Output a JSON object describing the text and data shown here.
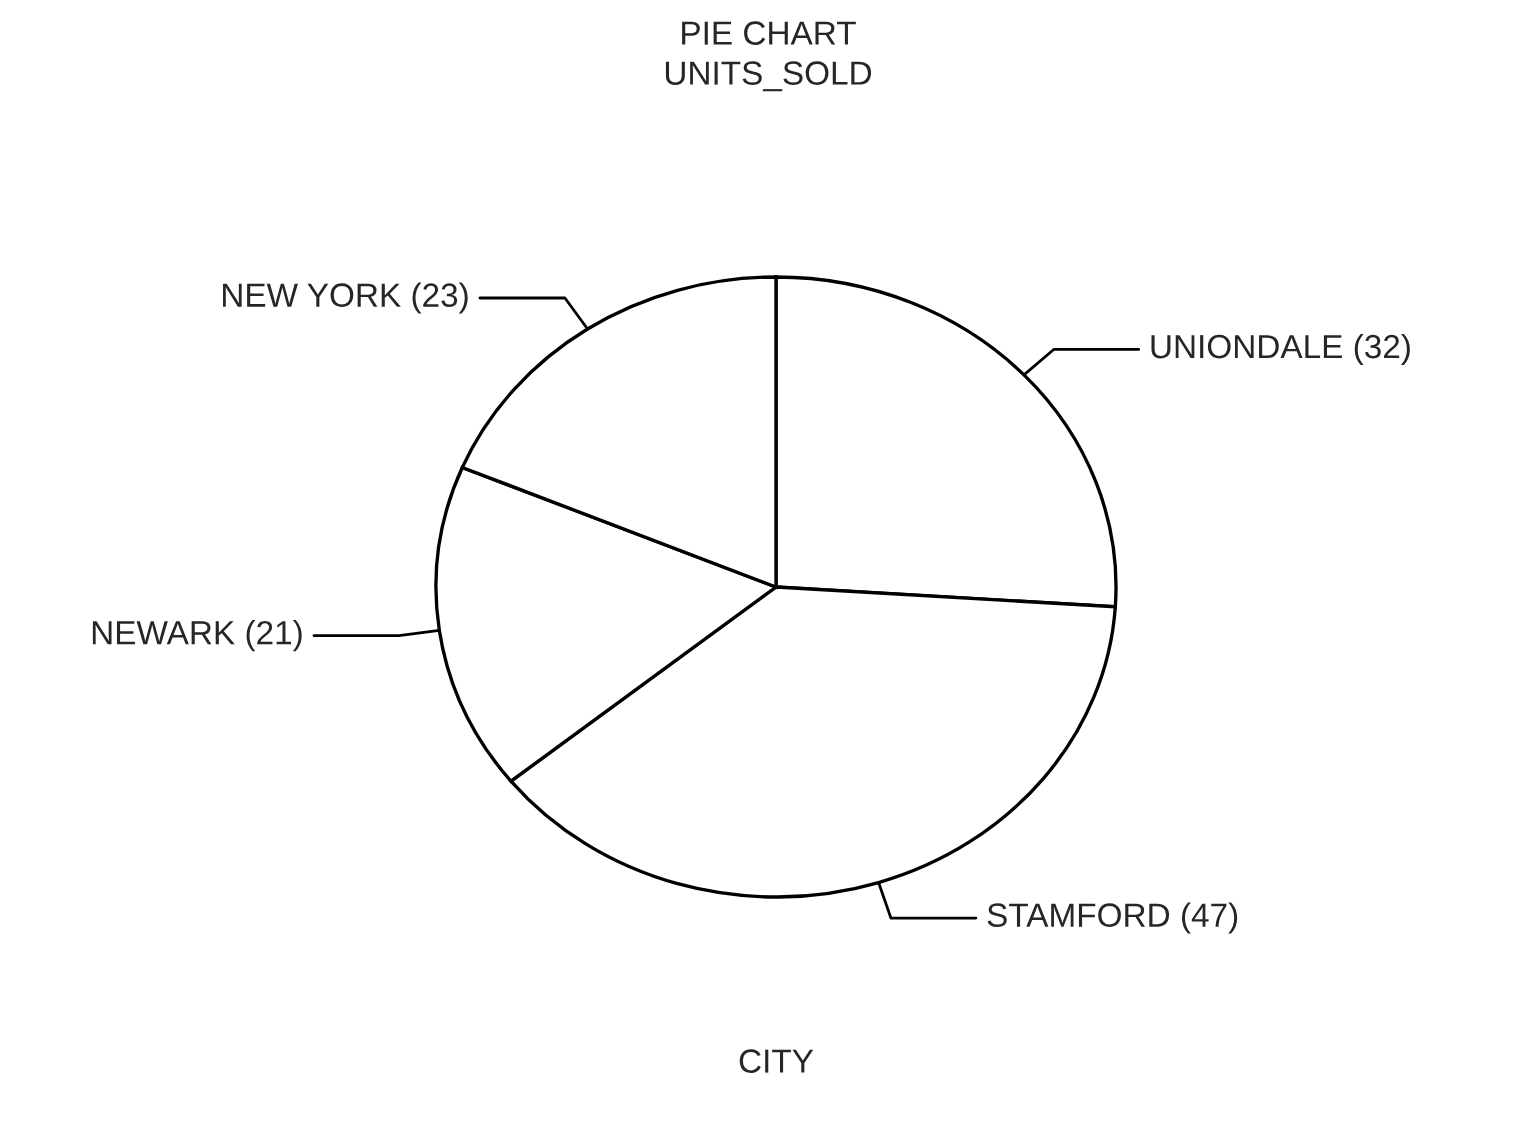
{
  "chart_data": {
    "type": "pie",
    "title": "PIE CHART",
    "subtitle": "UNITS_SOLD",
    "xlabel": "CITY",
    "categories": [
      "UNIONDALE (32)",
      "STAMFORD (47)",
      "NEWARK (21)",
      "NEW YORK (23)"
    ],
    "values": [
      32,
      47,
      21,
      23
    ],
    "colors": [
      "#ffffff",
      "#ffffff",
      "#ffffff",
      "#ffffff"
    ]
  }
}
